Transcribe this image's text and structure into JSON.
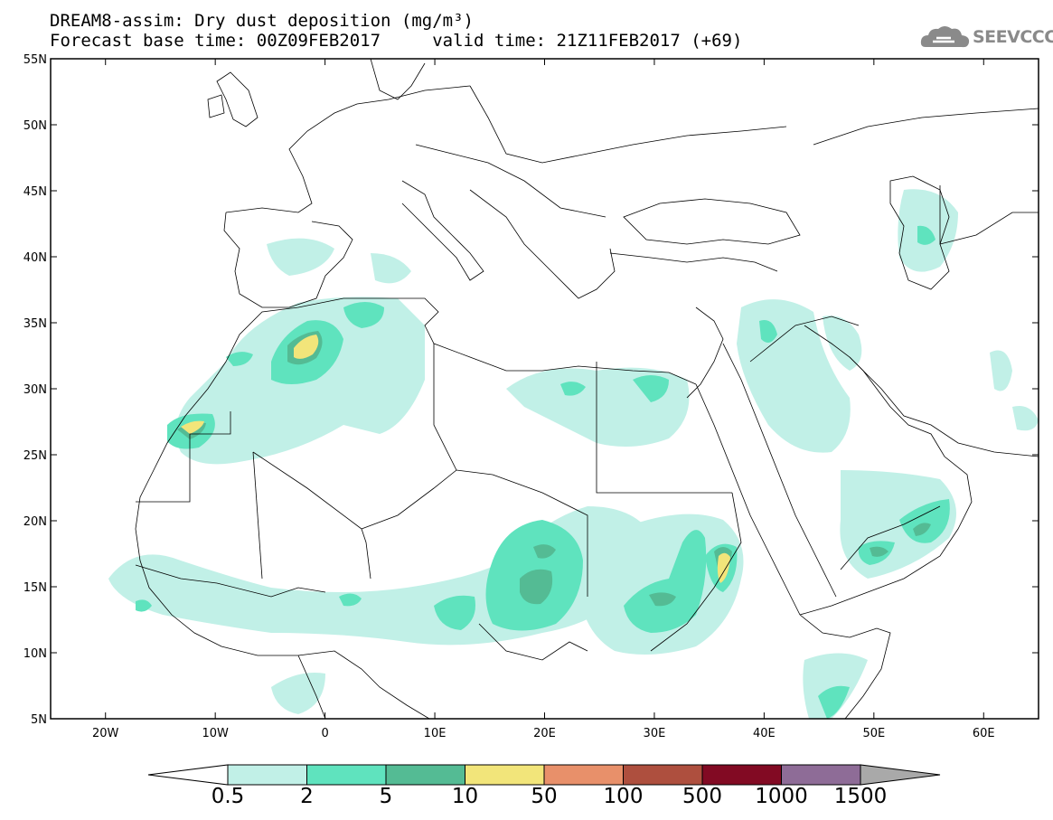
{
  "header": {
    "line1": "DREAM8-assim: Dry dust deposition (mg/m³)",
    "line2": "Forecast base time: 00Z09FEB2017     valid time: 21Z11FEB2017 (+69)",
    "logo_text": "SEEVCCC",
    "logo_icon": "cloud-logo-icon"
  },
  "map": {
    "extent_lon": [
      -25,
      65
    ],
    "extent_lat": [
      5,
      55
    ],
    "lat_ticks": [
      "55N",
      "50N",
      "45N",
      "40N",
      "35N",
      "30N",
      "25N",
      "20N",
      "15N",
      "10N",
      "5N"
    ],
    "lon_ticks": [
      "20W",
      "10W",
      "0",
      "10E",
      "20E",
      "30E",
      "40E",
      "50E",
      "60E"
    ]
  },
  "colorbar": {
    "labels": [
      "0.5",
      "2",
      "5",
      "10",
      "50",
      "100",
      "500",
      "1000",
      "1500"
    ],
    "colors": [
      "#c1f0e7",
      "#5fe3be",
      "#54bb94",
      "#f2e57a",
      "#e8906a",
      "#ae4f3e",
      "#820a23",
      "#8e6c97"
    ],
    "under_color": "#ffffff",
    "over_color": "#a9a9a9"
  }
}
